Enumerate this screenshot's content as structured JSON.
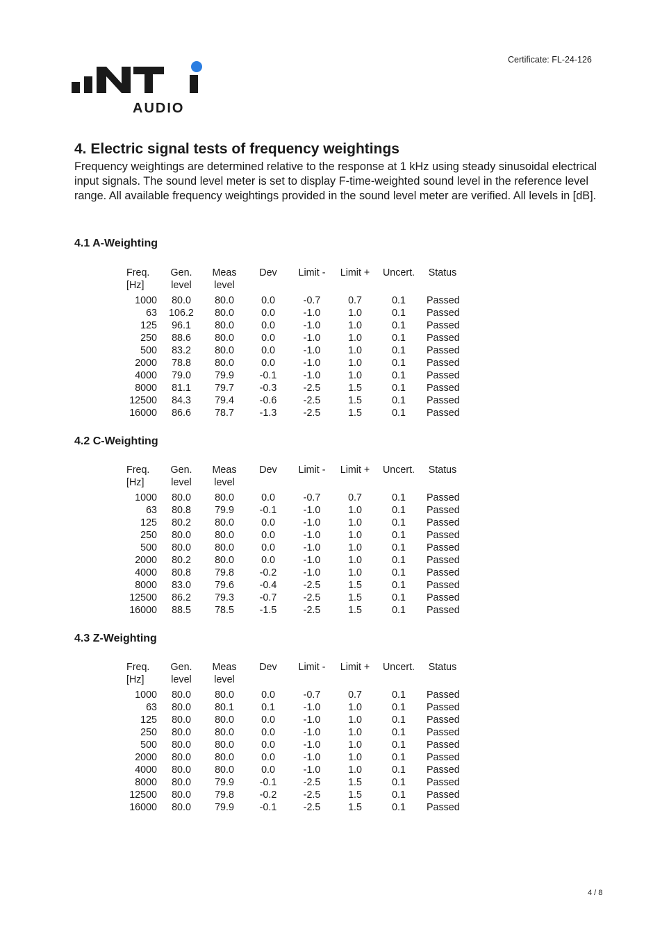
{
  "header": {
    "logo_text": "NTi AUDIO",
    "certificate": "Certificate: FL-24-126"
  },
  "section": {
    "title": "4. Electric signal tests of frequency weightings",
    "intro": "Frequency weightings are determined relative to the response at 1 kHz using steady sinusoidal electrical input signals. The sound level meter is set to display F-time-weighted sound level in the reference level range. All available frequency weightings provided in the sound level meter are verified. All levels in [dB]."
  },
  "columns": [
    [
      "Freq.",
      "[Hz]"
    ],
    [
      "Gen.",
      "level"
    ],
    [
      "Meas",
      "level"
    ],
    [
      "Dev",
      ""
    ],
    [
      "Limit -",
      ""
    ],
    [
      "Limit +",
      ""
    ],
    [
      "Uncert.",
      ""
    ],
    [
      "Status",
      ""
    ]
  ],
  "tables": [
    {
      "title": "4.1 A-Weighting",
      "rows": [
        [
          "1000",
          "80.0",
          "80.0",
          "0.0",
          "-0.7",
          "0.7",
          "0.1",
          "Passed"
        ],
        [
          "63",
          "106.2",
          "80.0",
          "0.0",
          "-1.0",
          "1.0",
          "0.1",
          "Passed"
        ],
        [
          "125",
          "96.1",
          "80.0",
          "0.0",
          "-1.0",
          "1.0",
          "0.1",
          "Passed"
        ],
        [
          "250",
          "88.6",
          "80.0",
          "0.0",
          "-1.0",
          "1.0",
          "0.1",
          "Passed"
        ],
        [
          "500",
          "83.2",
          "80.0",
          "0.0",
          "-1.0",
          "1.0",
          "0.1",
          "Passed"
        ],
        [
          "2000",
          "78.8",
          "80.0",
          "0.0",
          "-1.0",
          "1.0",
          "0.1",
          "Passed"
        ],
        [
          "4000",
          "79.0",
          "79.9",
          "-0.1",
          "-1.0",
          "1.0",
          "0.1",
          "Passed"
        ],
        [
          "8000",
          "81.1",
          "79.7",
          "-0.3",
          "-2.5",
          "1.5",
          "0.1",
          "Passed"
        ],
        [
          "12500",
          "84.3",
          "79.4",
          "-0.6",
          "-2.5",
          "1.5",
          "0.1",
          "Passed"
        ],
        [
          "16000",
          "86.6",
          "78.7",
          "-1.3",
          "-2.5",
          "1.5",
          "0.1",
          "Passed"
        ]
      ]
    },
    {
      "title": "4.2 C-Weighting",
      "rows": [
        [
          "1000",
          "80.0",
          "80.0",
          "0.0",
          "-0.7",
          "0.7",
          "0.1",
          "Passed"
        ],
        [
          "63",
          "80.8",
          "79.9",
          "-0.1",
          "-1.0",
          "1.0",
          "0.1",
          "Passed"
        ],
        [
          "125",
          "80.2",
          "80.0",
          "0.0",
          "-1.0",
          "1.0",
          "0.1",
          "Passed"
        ],
        [
          "250",
          "80.0",
          "80.0",
          "0.0",
          "-1.0",
          "1.0",
          "0.1",
          "Passed"
        ],
        [
          "500",
          "80.0",
          "80.0",
          "0.0",
          "-1.0",
          "1.0",
          "0.1",
          "Passed"
        ],
        [
          "2000",
          "80.2",
          "80.0",
          "0.0",
          "-1.0",
          "1.0",
          "0.1",
          "Passed"
        ],
        [
          "4000",
          "80.8",
          "79.8",
          "-0.2",
          "-1.0",
          "1.0",
          "0.1",
          "Passed"
        ],
        [
          "8000",
          "83.0",
          "79.6",
          "-0.4",
          "-2.5",
          "1.5",
          "0.1",
          "Passed"
        ],
        [
          "12500",
          "86.2",
          "79.3",
          "-0.7",
          "-2.5",
          "1.5",
          "0.1",
          "Passed"
        ],
        [
          "16000",
          "88.5",
          "78.5",
          "-1.5",
          "-2.5",
          "1.5",
          "0.1",
          "Passed"
        ]
      ]
    },
    {
      "title": "4.3 Z-Weighting",
      "rows": [
        [
          "1000",
          "80.0",
          "80.0",
          "0.0",
          "-0.7",
          "0.7",
          "0.1",
          "Passed"
        ],
        [
          "63",
          "80.0",
          "80.1",
          "0.1",
          "-1.0",
          "1.0",
          "0.1",
          "Passed"
        ],
        [
          "125",
          "80.0",
          "80.0",
          "0.0",
          "-1.0",
          "1.0",
          "0.1",
          "Passed"
        ],
        [
          "250",
          "80.0",
          "80.0",
          "0.0",
          "-1.0",
          "1.0",
          "0.1",
          "Passed"
        ],
        [
          "500",
          "80.0",
          "80.0",
          "0.0",
          "-1.0",
          "1.0",
          "0.1",
          "Passed"
        ],
        [
          "2000",
          "80.0",
          "80.0",
          "0.0",
          "-1.0",
          "1.0",
          "0.1",
          "Passed"
        ],
        [
          "4000",
          "80.0",
          "80.0",
          "0.0",
          "-1.0",
          "1.0",
          "0.1",
          "Passed"
        ],
        [
          "8000",
          "80.0",
          "79.9",
          "-0.1",
          "-2.5",
          "1.5",
          "0.1",
          "Passed"
        ],
        [
          "12500",
          "80.0",
          "79.8",
          "-0.2",
          "-2.5",
          "1.5",
          "0.1",
          "Passed"
        ],
        [
          "16000",
          "80.0",
          "79.9",
          "-0.1",
          "-2.5",
          "1.5",
          "0.1",
          "Passed"
        ]
      ]
    }
  ],
  "footer": {
    "page": "4 / 8"
  },
  "colors": {
    "logo_dark": "#1a1a1a",
    "logo_dot": "#2a7de1"
  }
}
